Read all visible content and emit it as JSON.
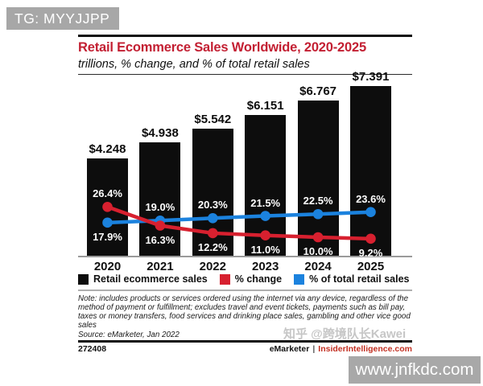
{
  "overlays": {
    "tg_badge": "TG: MYYJJPP",
    "site_badge": "www.jnfkdc.com",
    "watermark": "知乎 @跨境队长Kawei"
  },
  "chart": {
    "note": "Note: includes products or services ordered using the internet via any device, regardless of the method of payment or fulfillment; excludes travel and event tickets, payments such as bill pay, taxes or money transfers, food services and drinking place sales, gambling and other vice good sales",
    "source": "Source: eMarketer, Jan 2022",
    "footer": {
      "code": "272408",
      "brand": "eMarketer",
      "sep": "|",
      "site": "InsiderIntelligence.com"
    }
  },
  "chart_data": {
    "type": "bar+line",
    "title": "Retail Ecommerce Sales Worldwide, 2020-2025",
    "subtitle": "trillions, % change, and % of total retail sales",
    "categories": [
      "2020",
      "2021",
      "2022",
      "2023",
      "2024",
      "2025"
    ],
    "series": [
      {
        "name": "Retail ecommerce sales",
        "type": "bar",
        "unit": "USD trillions",
        "color": "#0d0d0d",
        "values": [
          4.248,
          4.938,
          5.542,
          6.151,
          6.767,
          7.391
        ],
        "labels": [
          "$4.248",
          "$4.938",
          "$5.542",
          "$6.151",
          "$6.767",
          "$7.391"
        ]
      },
      {
        "name": "% change",
        "type": "line",
        "color": "#d7202f",
        "values": [
          26.4,
          16.3,
          12.2,
          11.0,
          10.0,
          9.2
        ],
        "labels": [
          "26.4%",
          "16.3%",
          "12.2%",
          "11.0%",
          "10.0%",
          "9.2%"
        ],
        "label_pos": [
          "above",
          "below",
          "below",
          "below",
          "below",
          "below"
        ]
      },
      {
        "name": "% of total retail sales",
        "type": "line",
        "color": "#1b82de",
        "values": [
          17.9,
          19.0,
          20.3,
          21.5,
          22.5,
          23.6
        ],
        "labels": [
          "17.9%",
          "19.0%",
          "20.3%",
          "21.5%",
          "22.5%",
          "23.6%"
        ],
        "label_pos": [
          "below",
          "above",
          "above",
          "above",
          "above",
          "above"
        ]
      }
    ],
    "bar_axis_range": [
      0,
      7.8
    ],
    "line_axis_range_pct": [
      0,
      30
    ],
    "grid": false,
    "legend_position": "bottom"
  }
}
